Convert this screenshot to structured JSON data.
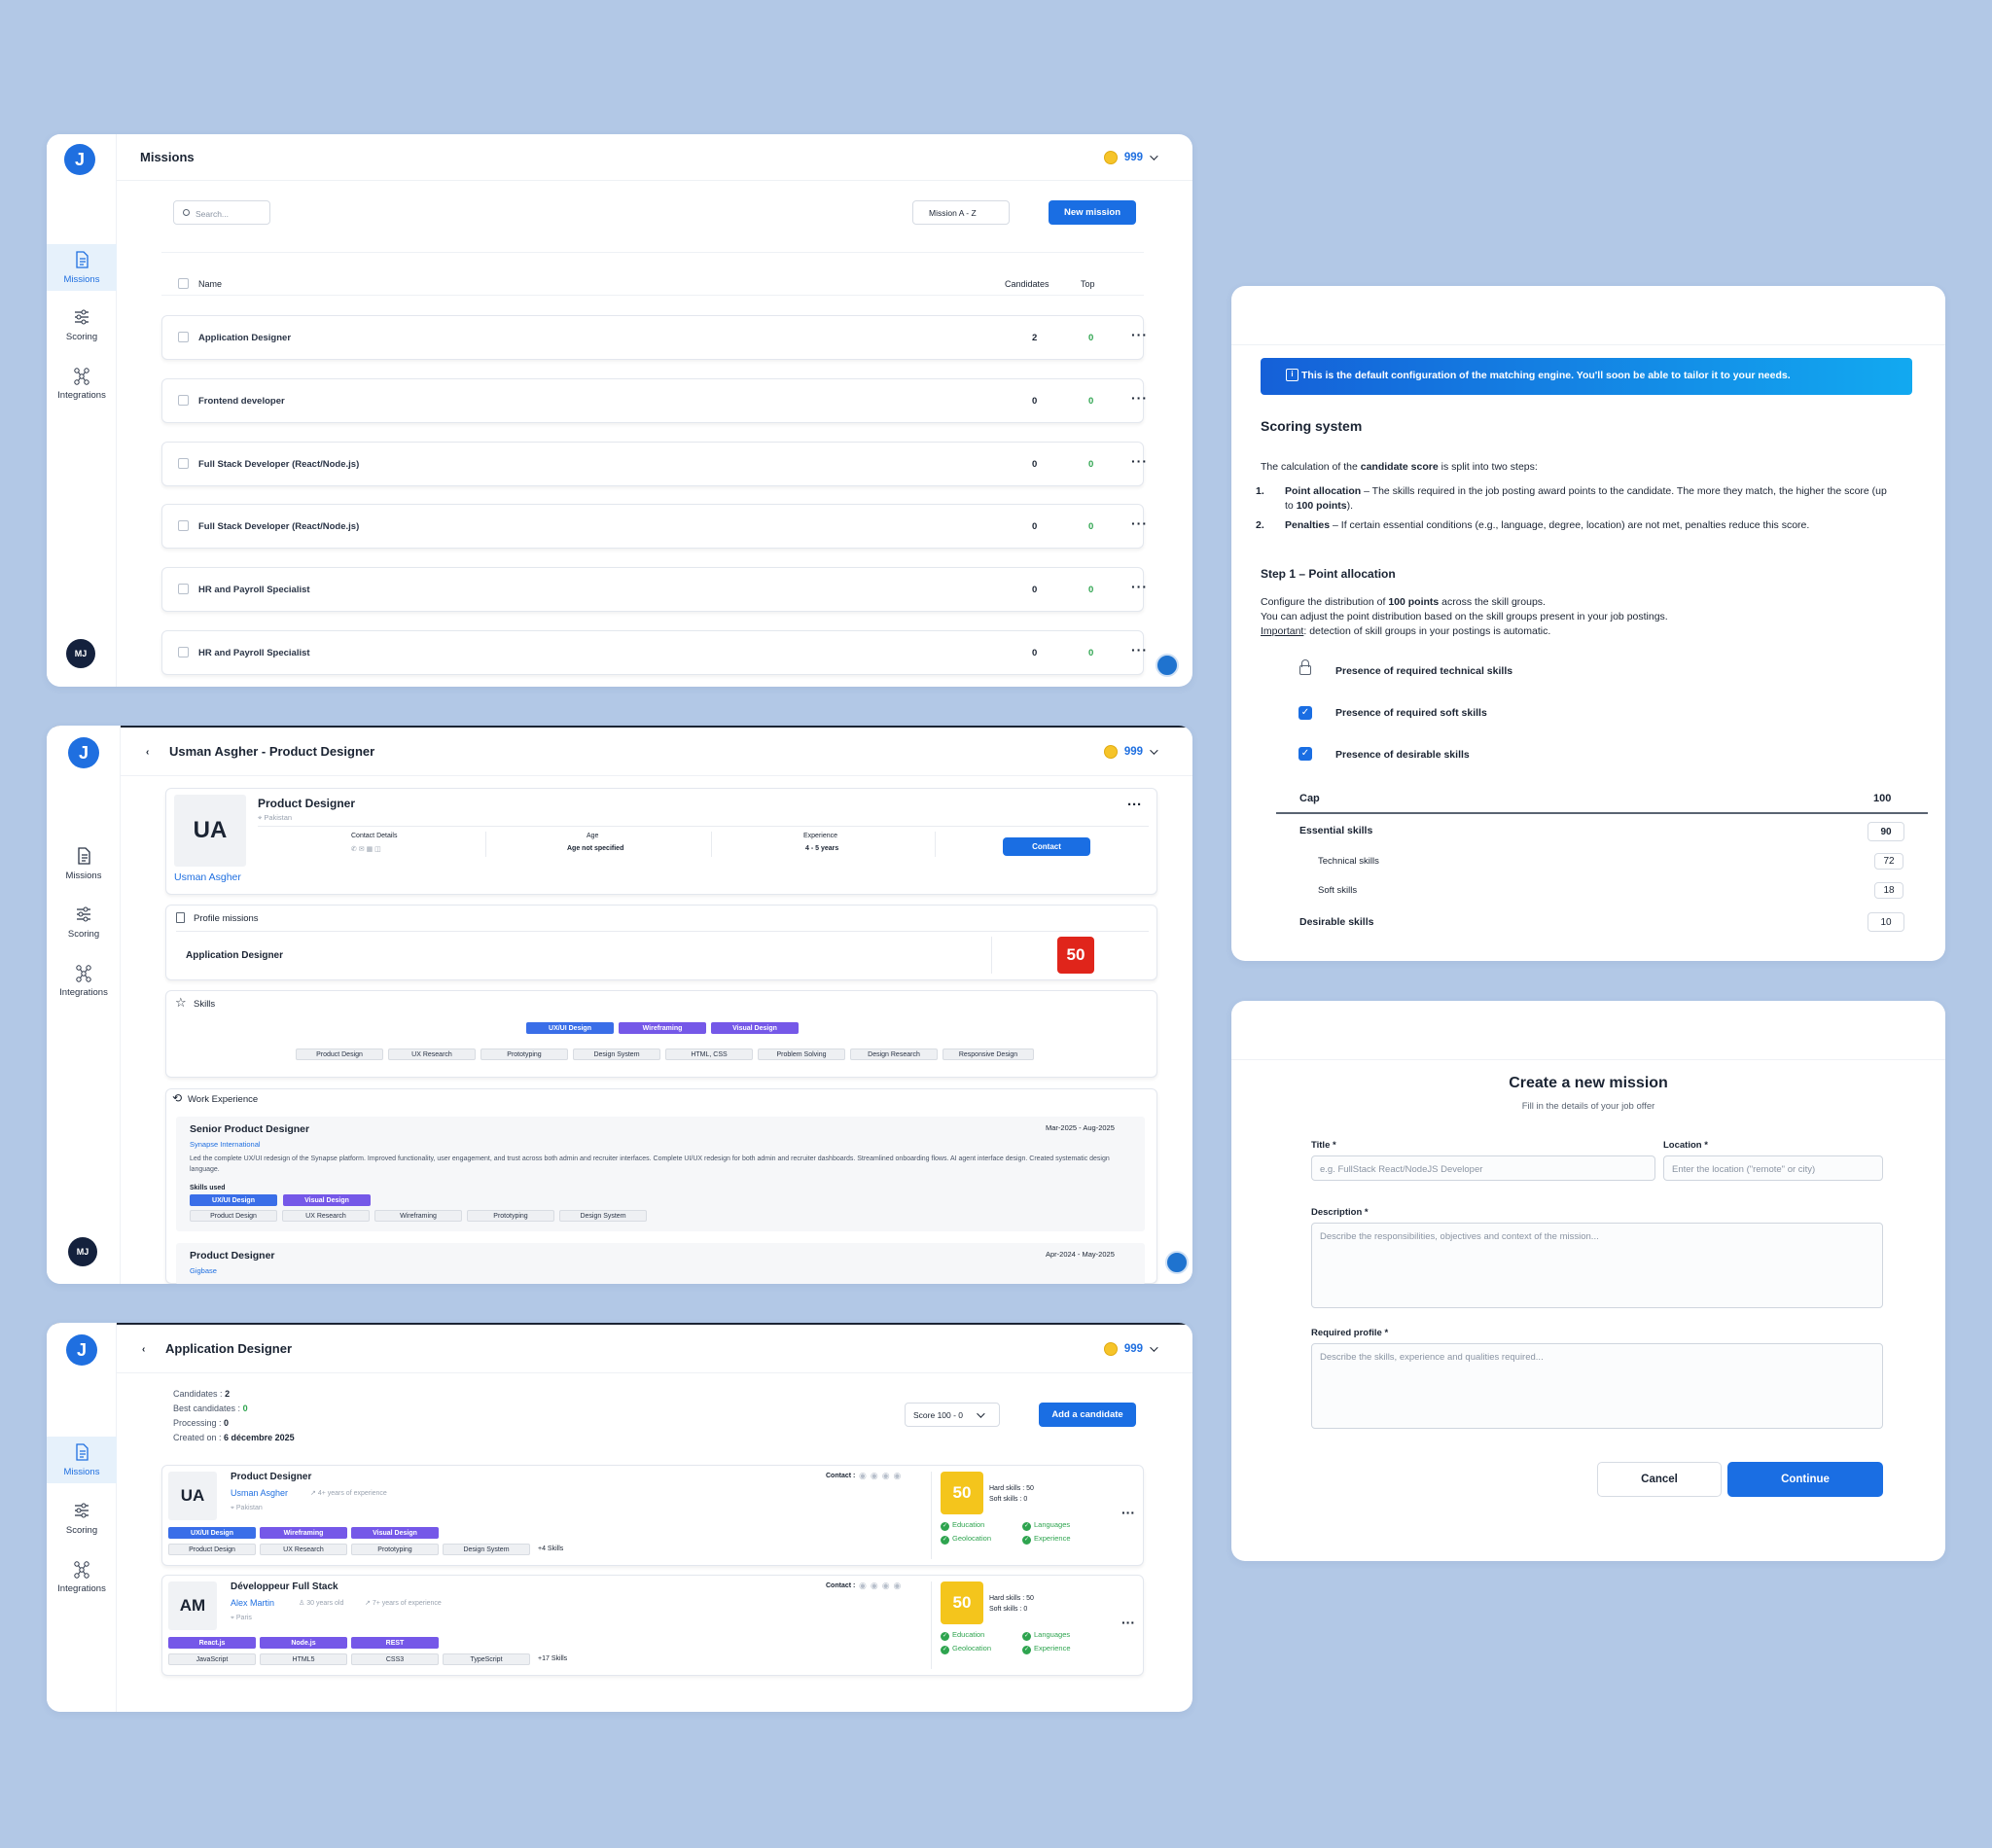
{
  "credits": "999",
  "nav": {
    "missions": "Missions",
    "scoring": "Scoring",
    "integrations": "Integrations"
  },
  "user_initials": "MJ",
  "missions_page": {
    "title": "Missions",
    "search_placeholder": "Search...",
    "sort": "Mission A - Z",
    "new_mission": "New mission",
    "col_name": "Name",
    "col_candidates": "Candidates",
    "col_top": "Top",
    "rows": [
      {
        "name": "Application Designer",
        "candidates": "2",
        "top": "0"
      },
      {
        "name": "Frontend developer",
        "candidates": "0",
        "top": "0"
      },
      {
        "name": "Full Stack Developer (React/Node.js)",
        "candidates": "0",
        "top": "0"
      },
      {
        "name": "Full Stack Developer (React/Node.js)",
        "candidates": "0",
        "top": "0"
      },
      {
        "name": "HR and Payroll Specialist",
        "candidates": "0",
        "top": "0"
      },
      {
        "name": "HR and Payroll Specialist",
        "candidates": "0",
        "top": "0"
      }
    ]
  },
  "profile_page": {
    "title": "Usman Asgher - Product Designer",
    "initials": "UA",
    "role": "Product Designer",
    "location": "Pakistan",
    "name": "Usman Asgher",
    "contact_details": "Contact Details",
    "age_label": "Age",
    "age_value": "Age not specified",
    "exp_label": "Experience",
    "exp_value": "4 - 5 years",
    "contact_btn": "Contact",
    "missions_title": "Profile missions",
    "mission_name": "Application Designer",
    "mission_score": "50",
    "skills_title": "Skills",
    "hard_skills": [
      "UX/UI Design",
      "Wireframing",
      "Visual Design"
    ],
    "soft_skills": [
      "Product Design",
      "UX Research",
      "Prototyping",
      "Design System",
      "HTML, CSS",
      "Problem Solving",
      "Design Research",
      "Responsive Design"
    ],
    "work_title": "Work Experience",
    "job1": {
      "title": "Senior Product Designer",
      "dates": "Mar-2025 - Aug-2025",
      "company": "Synapse International",
      "desc": "Led the complete UX/UI redesign of the Synapse platform. Improved functionality, user engagement, and trust across both admin and recruiter interfaces. Complete UI/UX redesign for both admin and recruiter dashboards. Streamlined onboarding flows. AI agent interface design. Created systematic design language.",
      "skills_used": "Skills used",
      "tags": [
        "UX/UI Design",
        "Visual Design"
      ],
      "chips": [
        "Product Design",
        "UX Research",
        "Wireframing",
        "Prototyping",
        "Design System"
      ]
    },
    "job2": {
      "title": "Product Designer",
      "dates": "Apr-2024 - May-2025",
      "company": "Gigbase"
    }
  },
  "mission_detail": {
    "title": "Application Designer",
    "stats": {
      "candidates_label": "Candidates :",
      "candidates": "2",
      "best_label": "Best candidates :",
      "best": "0",
      "processing_label": "Processing :",
      "processing": "0",
      "created_label": "Created on :",
      "created": "6 décembre 2025"
    },
    "sort": "Score 100 - 0",
    "add_btn": "Add a candidate",
    "contact_label": "Contact :",
    "hard_label": "Hard skills : 50",
    "soft_label": "Soft skills : 0",
    "criteria": [
      "Education",
      "Languages",
      "Geolocation",
      "Experience"
    ],
    "candidates": [
      {
        "initials": "UA",
        "title": "Product Designer",
        "name": "Usman Asgher",
        "meta1": "",
        "meta2": "4+ years of experience",
        "location": "Pakistan",
        "score": "50",
        "tags": [
          "UX/UI Design",
          "Wireframing",
          "Visual Design"
        ],
        "chips": [
          "Product Design",
          "UX Research",
          "Prototyping",
          "Design System"
        ],
        "more": "+4 Skills"
      },
      {
        "initials": "AM",
        "title": "Développeur Full Stack",
        "name": "Alex Martin",
        "meta1": "30 years old",
        "meta2": "7+ years of experience",
        "location": "Paris",
        "score": "50",
        "tags": [
          "React.js",
          "Node.js",
          "REST"
        ],
        "chips": [
          "JavaScript",
          "HTML5",
          "CSS3",
          "TypeScript"
        ],
        "more": "+17 Skills"
      }
    ]
  },
  "scoring_page": {
    "banner": "This is the default configuration of the matching engine. You'll soon be able to tailor it to your needs.",
    "title": "Scoring system",
    "intro_pre": "The calculation of the ",
    "intro_bold": "candidate score",
    "intro_post": " is split into two steps:",
    "step1_bold": "Point allocation",
    "step1_text": " – The skills required in the job posting award points to the candidate. The more they match, the higher the score (up to ",
    "step1_pts": "100 points",
    "step1_end": ").",
    "step2_bold": "Penalties",
    "step2_text": " – If certain essential conditions (e.g., language, degree, location) are not met, penalties reduce this score.",
    "step1_title": "Step 1 – Point allocation",
    "cfg_pre": "Configure the distribution of ",
    "cfg_bold": "100 points",
    "cfg_post": " across the skill groups.",
    "cfg2": "You can adjust the point distribution based on the skill groups present in your job postings.",
    "imp_label": "Important",
    "imp_text": ": detection of skill groups in your postings is automatic.",
    "opts": [
      "Presence of required technical skills",
      "Presence of required soft skills",
      "Presence of desirable skills"
    ],
    "cap_label": "Cap",
    "cap_value": "100",
    "essential": "Essential skills",
    "essential_v": "90",
    "technical": "Technical skills",
    "technical_v": "72",
    "soft": "Soft skills",
    "soft_v": "18",
    "desirable": "Desirable skills",
    "desirable_v": "10"
  },
  "create_page": {
    "title": "Create a new mission",
    "subtitle": "Fill in the details of your job offer",
    "title_label": "Title *",
    "title_ph": "e.g. FullStack React/NodeJS Developer",
    "loc_label": "Location *",
    "loc_ph": "Enter the location (\"remote\" or city)",
    "desc_label": "Description *",
    "desc_ph": "Describe the responsibilities, objectives and context of the mission...",
    "prof_label": "Required profile *",
    "prof_ph": "Describe the skills, experience and qualities required...",
    "cancel": "Cancel",
    "continue": "Continue"
  }
}
